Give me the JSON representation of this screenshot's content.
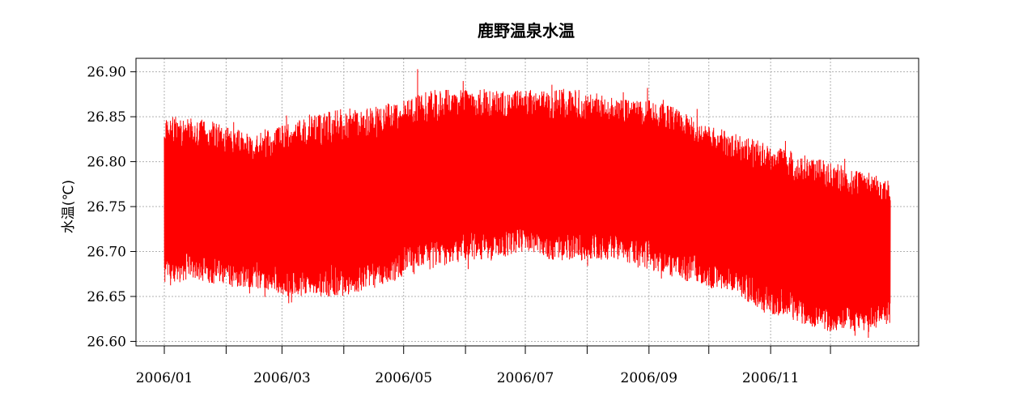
{
  "chart_data": {
    "type": "line",
    "title": "鹿野温泉水温",
    "xlabel": "",
    "ylabel": "水温(℃)",
    "x_range": [
      "2006-01-01",
      "2006-12-31"
    ],
    "ylim": [
      26.595,
      26.915
    ],
    "grid": true,
    "x_ticks": [
      "2006-01-01",
      "2006-02-01",
      "2006-03-01",
      "2006-04-01",
      "2006-05-01",
      "2006-06-01",
      "2006-07-01",
      "2006-08-01",
      "2006-09-01",
      "2006-10-01",
      "2006-11-01",
      "2006-12-01"
    ],
    "x_tick_labels": [
      {
        "date": "2006-01-01",
        "label": "2006/01"
      },
      {
        "date": "2006-03-01",
        "label": "2006/03"
      },
      {
        "date": "2006-05-01",
        "label": "2006/05"
      },
      {
        "date": "2006-07-01",
        "label": "2006/07"
      },
      {
        "date": "2006-09-01",
        "label": "2006/09"
      },
      {
        "date": "2006-11-01",
        "label": "2006/11"
      }
    ],
    "y_ticks": [
      "26.60",
      "26.65",
      "26.70",
      "26.75",
      "26.80",
      "26.85",
      "26.90"
    ],
    "series": [
      {
        "color": "#ff0000",
        "envelope": [
          {
            "date": "2006-01-01",
            "min": 26.66,
            "max": 26.85
          },
          {
            "date": "2006-01-15",
            "min": 26.67,
            "max": 26.85
          },
          {
            "date": "2006-02-01",
            "min": 26.66,
            "max": 26.84
          },
          {
            "date": "2006-02-15",
            "min": 26.66,
            "max": 26.83
          },
          {
            "date": "2006-03-01",
            "min": 26.65,
            "max": 26.84
          },
          {
            "date": "2006-03-15",
            "min": 26.65,
            "max": 26.85
          },
          {
            "date": "2006-04-01",
            "min": 26.65,
            "max": 26.86
          },
          {
            "date": "2006-04-15",
            "min": 26.66,
            "max": 26.86
          },
          {
            "date": "2006-05-01",
            "min": 26.67,
            "max": 26.87
          },
          {
            "date": "2006-05-15",
            "min": 26.68,
            "max": 26.88
          },
          {
            "date": "2006-06-01",
            "min": 26.69,
            "max": 26.88
          },
          {
            "date": "2006-06-15",
            "min": 26.69,
            "max": 26.88
          },
          {
            "date": "2006-07-01",
            "min": 26.7,
            "max": 26.88
          },
          {
            "date": "2006-07-15",
            "min": 26.69,
            "max": 26.88
          },
          {
            "date": "2006-08-01",
            "min": 26.69,
            "max": 26.88
          },
          {
            "date": "2006-08-15",
            "min": 26.69,
            "max": 26.87
          },
          {
            "date": "2006-09-01",
            "min": 26.68,
            "max": 26.87
          },
          {
            "date": "2006-09-15",
            "min": 26.67,
            "max": 26.86
          },
          {
            "date": "2006-10-01",
            "min": 26.66,
            "max": 26.84
          },
          {
            "date": "2006-10-15",
            "min": 26.65,
            "max": 26.83
          },
          {
            "date": "2006-11-01",
            "min": 26.63,
            "max": 26.82
          },
          {
            "date": "2006-11-15",
            "min": 26.62,
            "max": 26.81
          },
          {
            "date": "2006-12-01",
            "min": 26.61,
            "max": 26.8
          },
          {
            "date": "2006-12-15",
            "min": 26.61,
            "max": 26.79
          },
          {
            "date": "2006-12-31",
            "min": 26.62,
            "max": 26.78
          }
        ],
        "extremes": {
          "max": 26.903,
          "max_date": "2006-05-08",
          "min": 26.604,
          "min_date": "2006-12-20"
        }
      }
    ]
  }
}
